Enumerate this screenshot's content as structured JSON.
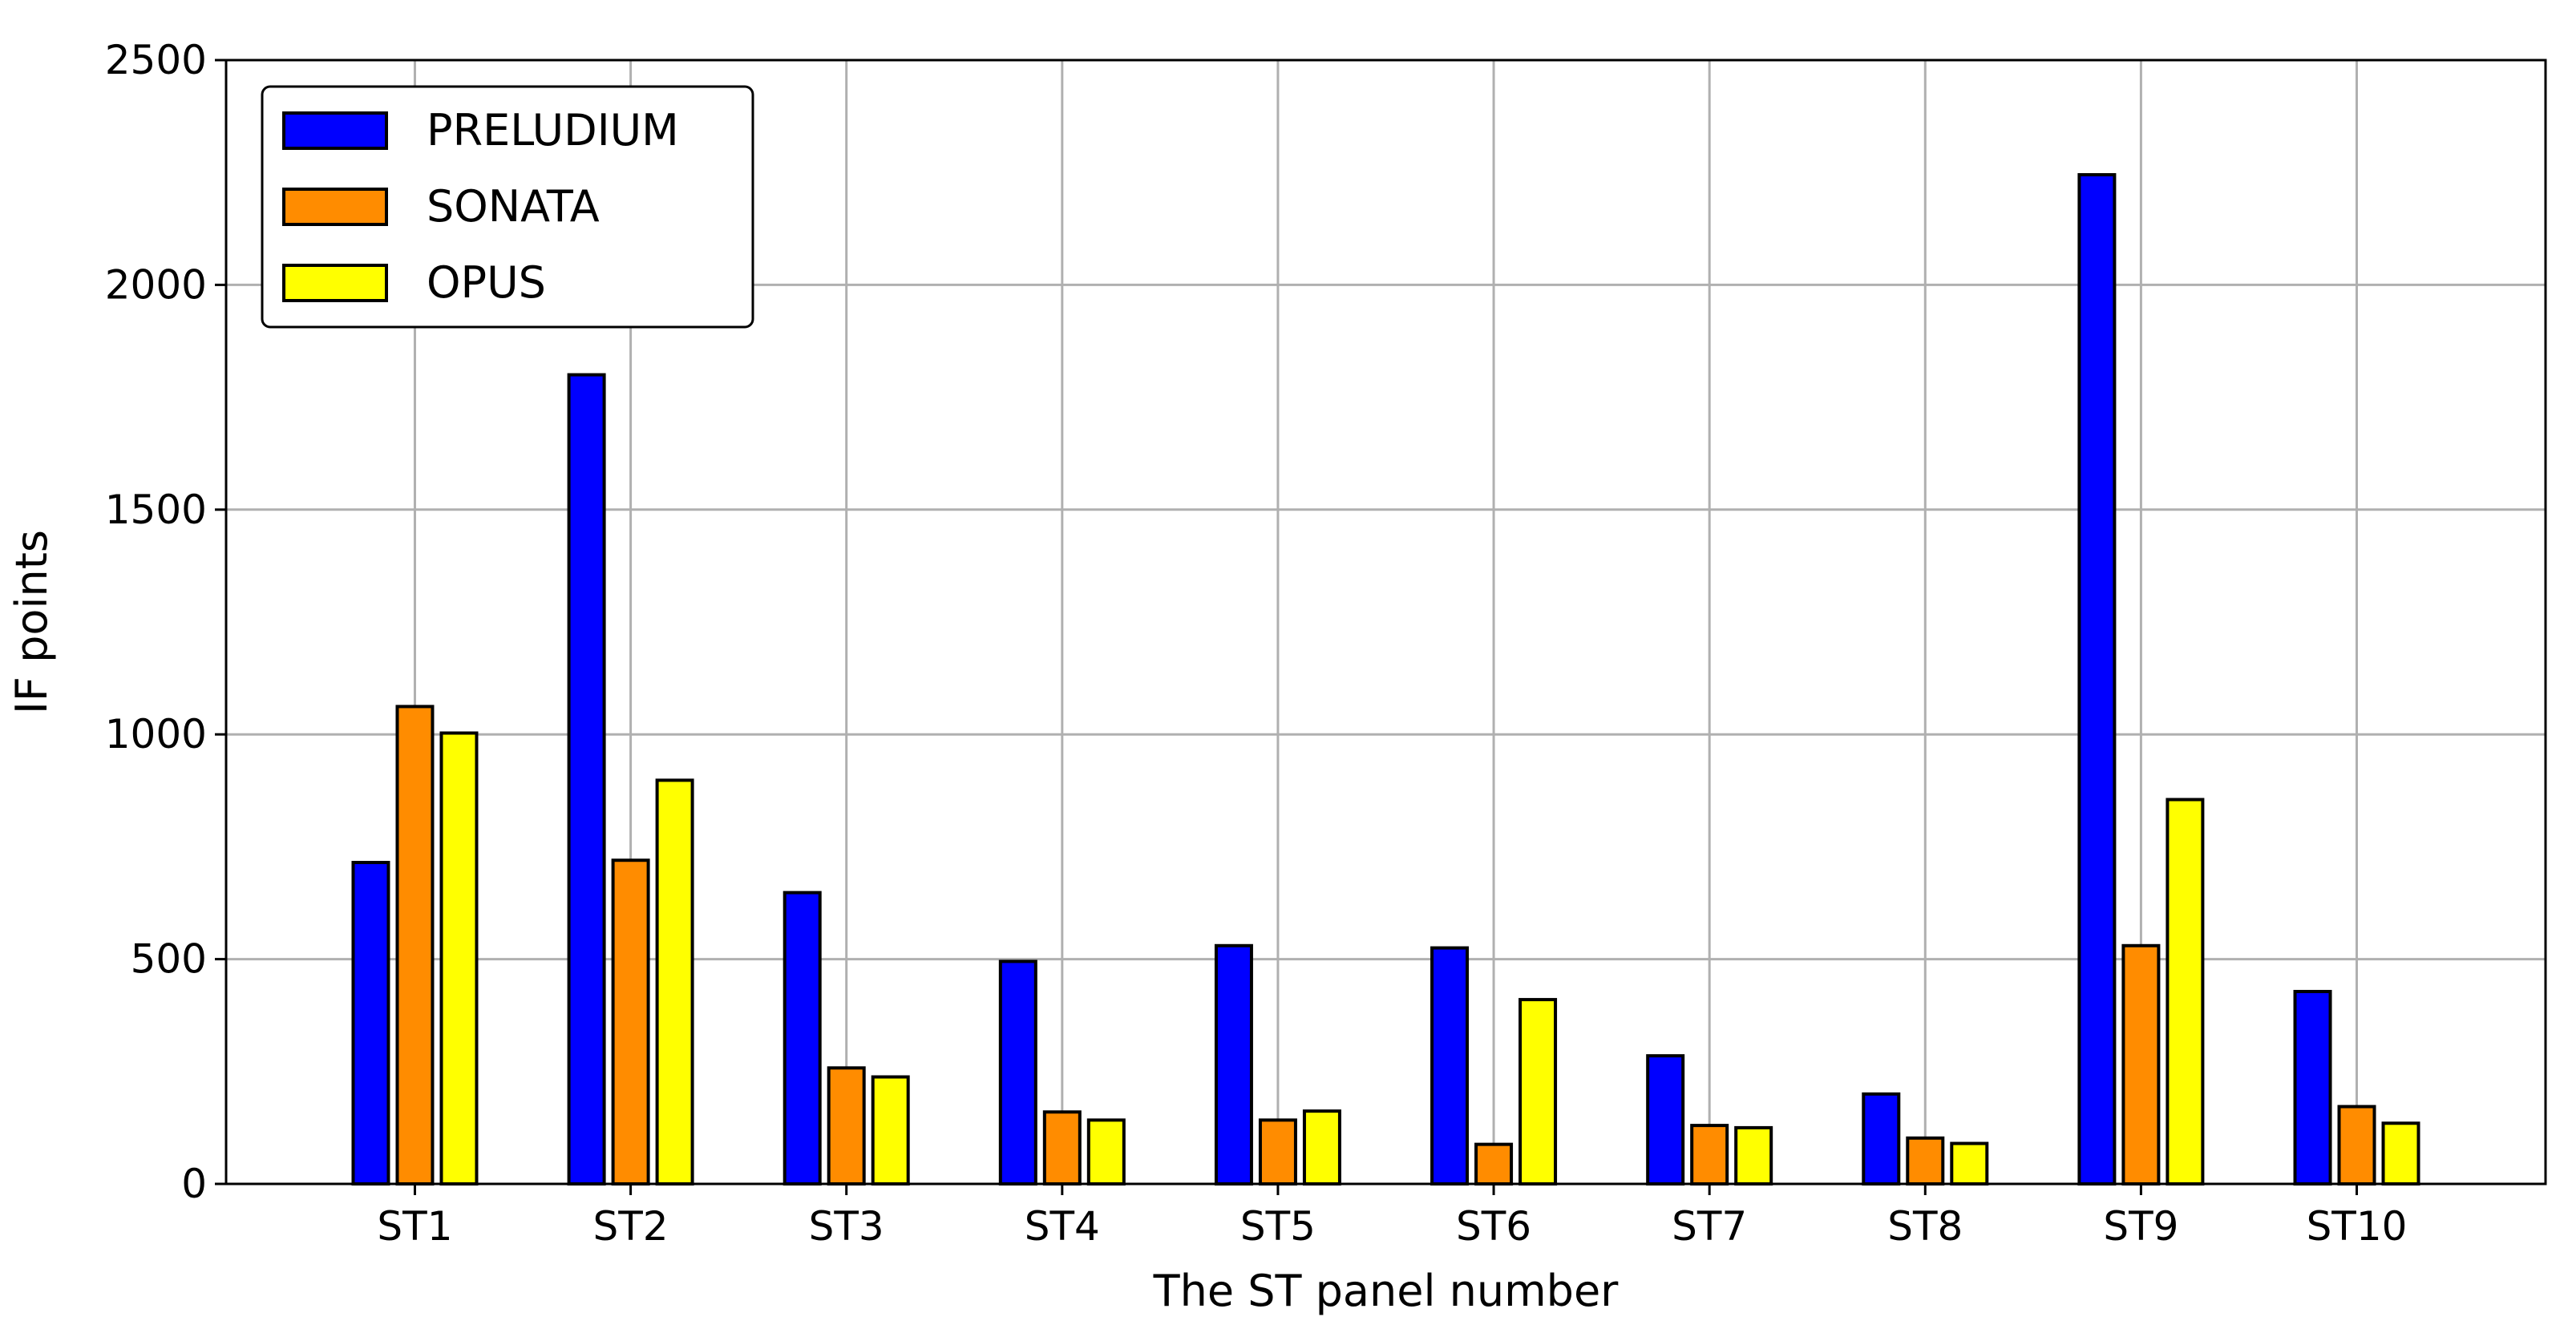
{
  "chart_data": {
    "type": "bar",
    "title": "",
    "xlabel": "The ST panel number",
    "ylabel": "IF points",
    "ylim": [
      0,
      2500
    ],
    "yticks": [
      0,
      500,
      1000,
      1500,
      2000,
      2500
    ],
    "grid": true,
    "legend_position": "top-left",
    "categories": [
      "ST1",
      "ST2",
      "ST3",
      "ST4",
      "ST5",
      "ST6",
      "ST7",
      "ST8",
      "ST9",
      "ST10"
    ],
    "series": [
      {
        "name": "PRELUDIUM",
        "color": "#0000ff",
        "values": [
          715,
          1800,
          648,
          495,
          530,
          525,
          285,
          200,
          2245,
          428
        ]
      },
      {
        "name": "SONATA",
        "color": "#ff8c00",
        "values": [
          1062,
          720,
          258,
          160,
          142,
          88,
          130,
          102,
          530,
          172
        ]
      },
      {
        "name": "OPUS",
        "color": "#ffff00",
        "values": [
          1003,
          898,
          238,
          142,
          162,
          410,
          125,
          90,
          855,
          135
        ]
      }
    ]
  }
}
